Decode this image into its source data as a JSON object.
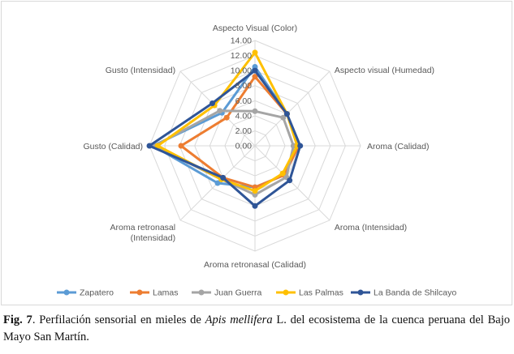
{
  "chart_data": {
    "type": "radar",
    "axes": [
      [
        "Aspecto Visual (Color)"
      ],
      [
        "Aspecto visual (Humedad)"
      ],
      [
        "Aroma (Calidad)"
      ],
      [
        "Aroma (Intensidad)"
      ],
      [
        "Aroma retronasal (Calidad)"
      ],
      [
        "Aroma retronasal",
        "(Intensidad)"
      ],
      [
        "Gusto (Calidad)"
      ],
      [
        "Gusto (Intensidad)"
      ]
    ],
    "ticks": [
      "0.00",
      "2.00",
      "4.00",
      "6.00",
      "8.00",
      "10.00",
      "12.00",
      "14.00"
    ],
    "range": [
      0,
      14
    ],
    "series": [
      {
        "name": "Zapatero",
        "color": "#5b9bd5",
        "values": [
          10.5,
          6.0,
          5.8,
          5.5,
          5.5,
          7.0,
          13.5,
          6.2
        ]
      },
      {
        "name": "Lamas",
        "color": "#ed7d31",
        "values": [
          9.2,
          6.0,
          5.8,
          5.5,
          5.5,
          6.0,
          9.8,
          5.3
        ]
      },
      {
        "name": "Juan Guerra",
        "color": "#a5a5a5",
        "values": [
          4.6,
          5.3,
          5.1,
          5.9,
          6.5,
          6.3,
          13.3,
          6.6
        ]
      },
      {
        "name": "Las Palmas",
        "color": "#ffc000",
        "values": [
          12.4,
          6.0,
          5.6,
          5.2,
          6.0,
          6.3,
          12.9,
          7.6
        ]
      },
      {
        "name": "La Banda de Shilcayo",
        "color": "#2f5597",
        "values": [
          10.0,
          6.0,
          6.0,
          6.5,
          8.0,
          6.0,
          14.0,
          8.0
        ]
      }
    ],
    "legend_position": "bottom",
    "grid": true
  },
  "caption": {
    "label": "Fig. 7",
    "text_before": ". Perfilación sensorial en mieles de ",
    "species": "Apis mellifera",
    "text_after": " L. del ecosistema de la cuenca peruana del Bajo Mayo San Martín."
  }
}
